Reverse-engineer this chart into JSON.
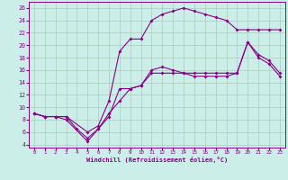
{
  "xlabel": "Windchill (Refroidissement éolien,°C)",
  "xlim_min": -0.5,
  "xlim_max": 23.5,
  "ylim_min": 3.5,
  "ylim_max": 27.0,
  "xticks": [
    0,
    1,
    2,
    3,
    4,
    5,
    6,
    7,
    8,
    9,
    10,
    11,
    12,
    13,
    14,
    15,
    16,
    17,
    18,
    19,
    20,
    21,
    22,
    23
  ],
  "yticks": [
    4,
    6,
    8,
    10,
    12,
    14,
    16,
    18,
    20,
    22,
    24,
    26
  ],
  "background_color": "#cceee8",
  "grid_color": "#aaccbb",
  "line_color": "#880088",
  "line1_x": [
    0,
    1,
    2,
    3,
    4,
    5,
    6,
    7,
    8,
    9,
    10,
    11,
    12,
    13,
    14,
    15,
    16,
    17,
    18,
    19,
    20,
    21,
    22,
    23
  ],
  "line1_y": [
    9.0,
    8.5,
    8.5,
    8.5,
    6.5,
    5.0,
    6.5,
    8.5,
    13.0,
    13.0,
    13.5,
    15.5,
    15.5,
    15.5,
    15.5,
    15.5,
    15.5,
    15.5,
    15.5,
    15.5,
    20.5,
    18.0,
    17.0,
    15.0
  ],
  "line2_x": [
    0,
    1,
    2,
    3,
    5,
    6,
    7,
    8,
    9,
    10,
    11,
    12,
    13,
    14,
    15,
    16,
    17,
    18,
    19,
    20,
    21,
    22,
    23
  ],
  "line2_y": [
    9.0,
    8.5,
    8.5,
    8.0,
    4.5,
    6.5,
    9.0,
    11.0,
    13.0,
    13.5,
    16.0,
    16.5,
    16.0,
    15.5,
    15.0,
    15.0,
    15.0,
    15.0,
    15.5,
    20.5,
    18.5,
    17.5,
    15.5
  ],
  "line3_x": [
    0,
    1,
    2,
    3,
    5,
    6,
    7,
    8,
    9,
    10,
    11,
    12,
    13,
    14,
    15,
    16,
    17,
    18,
    19,
    20,
    21,
    22,
    23
  ],
  "line3_y": [
    9.0,
    8.5,
    8.5,
    8.5,
    6.0,
    7.0,
    11.0,
    19.0,
    21.0,
    21.0,
    24.0,
    25.0,
    25.5,
    26.0,
    25.5,
    25.0,
    24.5,
    24.0,
    22.5,
    22.5,
    22.5,
    22.5,
    22.5
  ]
}
